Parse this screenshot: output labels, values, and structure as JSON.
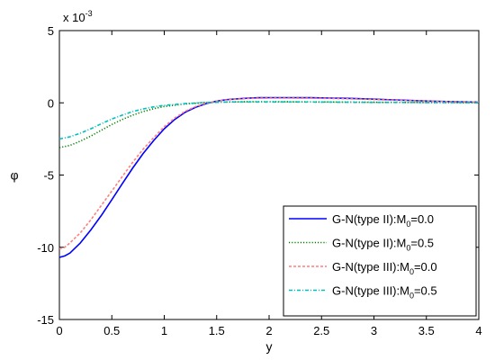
{
  "chart_data": {
    "type": "line",
    "title": "",
    "xlabel": "y",
    "ylabel": "φ",
    "y_exponent_label": "x 10",
    "y_exponent_power": "-3",
    "xlim": [
      0,
      4
    ],
    "ylim": [
      -15,
      5
    ],
    "xticks": [
      "0",
      "0.5",
      "1",
      "1.5",
      "2",
      "2.5",
      "3",
      "3.5",
      "4"
    ],
    "yticks": [
      "-15",
      "-10",
      "-5",
      "0",
      "5"
    ],
    "grid": false,
    "legend_position": "lower-right",
    "series": [
      {
        "name": "G-N(type II):M0=0.0",
        "legend_prefix": "G-N(type II):M",
        "legend_sub": "0",
        "legend_suffix": "=0.0",
        "color": "#0000ff",
        "style": "solid",
        "x": [
          0,
          0.05,
          0.1,
          0.2,
          0.3,
          0.4,
          0.5,
          0.6,
          0.7,
          0.8,
          0.9,
          1.0,
          1.1,
          1.2,
          1.3,
          1.4,
          1.5,
          1.6,
          1.7,
          1.8,
          1.9,
          2.0,
          2.2,
          2.4,
          2.6,
          2.8,
          3.0,
          3.2,
          3.4,
          3.6,
          3.8,
          4.0
        ],
        "y": [
          -10.7,
          -10.6,
          -10.4,
          -9.7,
          -8.8,
          -7.8,
          -6.7,
          -5.6,
          -4.5,
          -3.5,
          -2.6,
          -1.8,
          -1.15,
          -0.65,
          -0.3,
          -0.05,
          0.12,
          0.22,
          0.28,
          0.32,
          0.35,
          0.36,
          0.36,
          0.35,
          0.33,
          0.3,
          0.25,
          0.2,
          0.15,
          0.1,
          0.07,
          0.05
        ]
      },
      {
        "name": "G-N(type II):M0=0.5",
        "legend_prefix": "G-N(type II):M",
        "legend_sub": "0",
        "legend_suffix": "=0.5",
        "color": "#007f00",
        "style": "dotted",
        "x": [
          0,
          0.1,
          0.2,
          0.3,
          0.4,
          0.5,
          0.6,
          0.7,
          0.8,
          0.9,
          1.0,
          1.2,
          1.4,
          1.6,
          1.8,
          2.0,
          2.5,
          3.0,
          3.5,
          4.0
        ],
        "y": [
          -3.1,
          -2.95,
          -2.65,
          -2.3,
          -1.9,
          -1.5,
          -1.15,
          -0.85,
          -0.6,
          -0.4,
          -0.25,
          -0.08,
          0.02,
          0.06,
          0.08,
          0.08,
          0.06,
          0.04,
          0.02,
          0.01
        ]
      },
      {
        "name": "G-N(type III):M0=0.0",
        "legend_prefix": "G-N(type III):M",
        "legend_sub": "0",
        "legend_suffix": "=0.0",
        "color": "#ff7f7f",
        "style": "dashed",
        "x": [
          0,
          0.05,
          0.1,
          0.2,
          0.3,
          0.4,
          0.5,
          0.6,
          0.7,
          0.8,
          0.9,
          1.0,
          1.1,
          1.2,
          1.3,
          1.4,
          1.5,
          1.6,
          1.7,
          1.8,
          1.9,
          2.0,
          2.2,
          2.4,
          2.6,
          2.8,
          3.0,
          3.2,
          3.4,
          3.6,
          3.8,
          4.0
        ],
        "y": [
          -10.1,
          -10.0,
          -9.7,
          -9.0,
          -8.1,
          -7.1,
          -6.1,
          -5.1,
          -4.1,
          -3.2,
          -2.4,
          -1.65,
          -1.05,
          -0.58,
          -0.25,
          -0.02,
          0.12,
          0.2,
          0.26,
          0.3,
          0.32,
          0.33,
          0.33,
          0.32,
          0.3,
          0.27,
          0.23,
          0.18,
          0.14,
          0.1,
          0.07,
          0.05
        ]
      },
      {
        "name": "G-N(type III):M0=0.5",
        "legend_prefix": "G-N(type III):M",
        "legend_sub": "0",
        "legend_suffix": "=0.5",
        "color": "#00bfbf",
        "style": "dashdot",
        "x": [
          0,
          0.1,
          0.2,
          0.3,
          0.4,
          0.5,
          0.6,
          0.7,
          0.8,
          0.9,
          1.0,
          1.2,
          1.4,
          1.6,
          1.8,
          2.0,
          2.5,
          3.0,
          3.5,
          4.0
        ],
        "y": [
          -2.5,
          -2.35,
          -2.1,
          -1.8,
          -1.45,
          -1.12,
          -0.85,
          -0.6,
          -0.42,
          -0.28,
          -0.17,
          -0.05,
          0.02,
          0.05,
          0.06,
          0.06,
          0.05,
          0.03,
          0.02,
          0.01
        ]
      }
    ]
  }
}
